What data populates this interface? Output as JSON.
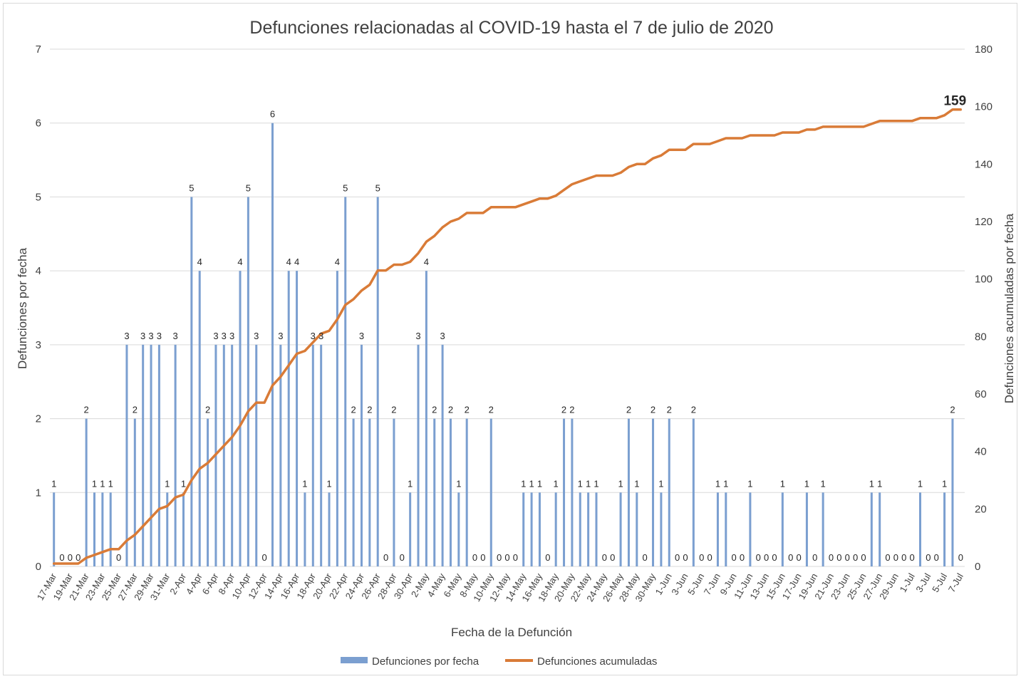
{
  "chart_data": {
    "type": "bar+line",
    "title": "Defunciones relacionadas al COVID-19 hasta el 7 de julio de 2020",
    "xlabel": "Fecha de la Defunción",
    "ylabel": "Defunciones por fecha",
    "y2label": "Defunciones acumuladas por fecha",
    "ylim": [
      0,
      7
    ],
    "y2lim": [
      0,
      180
    ],
    "yticks": [
      "0",
      "1",
      "2",
      "3",
      "4",
      "5",
      "6",
      "7"
    ],
    "y2ticks": [
      "0",
      "20",
      "40",
      "60",
      "80",
      "100",
      "120",
      "140",
      "160",
      "180"
    ],
    "categories": [
      "17-Mar",
      "18-Mar",
      "19-Mar",
      "20-Mar",
      "21-Mar",
      "22-Mar",
      "23-Mar",
      "24-Mar",
      "25-Mar",
      "26-Mar",
      "27-Mar",
      "28-Mar",
      "29-Mar",
      "30-Mar",
      "31-Mar",
      "1-Apr",
      "2-Apr",
      "3-Apr",
      "4-Apr",
      "5-Apr",
      "6-Apr",
      "7-Apr",
      "8-Apr",
      "9-Apr",
      "10-Apr",
      "11-Apr",
      "12-Apr",
      "13-Apr",
      "14-Apr",
      "15-Apr",
      "16-Apr",
      "17-Apr",
      "18-Apr",
      "19-Apr",
      "20-Apr",
      "21-Apr",
      "22-Apr",
      "23-Apr",
      "24-Apr",
      "25-Apr",
      "26-Apr",
      "27-Apr",
      "28-Apr",
      "29-Apr",
      "30-Apr",
      "1-May",
      "2-May",
      "3-May",
      "4-May",
      "5-May",
      "6-May",
      "7-May",
      "8-May",
      "9-May",
      "10-May",
      "11-May",
      "12-May",
      "13-May",
      "14-May",
      "15-May",
      "16-May",
      "17-May",
      "18-May",
      "19-May",
      "20-May",
      "21-May",
      "22-May",
      "23-May",
      "24-May",
      "25-May",
      "26-May",
      "27-May",
      "28-May",
      "29-May",
      "30-May",
      "31-May",
      "1-Jun",
      "2-Jun",
      "3-Jun",
      "4-Jun",
      "5-Jun",
      "6-Jun",
      "7-Jun",
      "8-Jun",
      "9-Jun",
      "10-Jun",
      "11-Jun",
      "12-Jun",
      "13-Jun",
      "14-Jun",
      "15-Jun",
      "16-Jun",
      "17-Jun",
      "18-Jun",
      "19-Jun",
      "20-Jun",
      "21-Jun",
      "22-Jun",
      "23-Jun",
      "24-Jun",
      "25-Jun",
      "26-Jun",
      "27-Jun",
      "28-Jun",
      "29-Jun",
      "30-Jun",
      "1-Jul",
      "2-Jul",
      "3-Jul",
      "4-Jul",
      "5-Jul",
      "6-Jul",
      "7-Jul"
    ],
    "xtick_labels": [
      "17-Mar",
      "19-Mar",
      "21-Mar",
      "23-Mar",
      "25-Mar",
      "27-Mar",
      "29-Mar",
      "31-Mar",
      "2-Apr",
      "4-Apr",
      "6-Apr",
      "8-Apr",
      "10-Apr",
      "12-Apr",
      "14-Apr",
      "16-Apr",
      "18-Apr",
      "20-Apr",
      "22-Apr",
      "24-Apr",
      "26-Apr",
      "28-Apr",
      "30-Apr",
      "2-May",
      "4-May",
      "6-May",
      "8-May",
      "10-May",
      "12-May",
      "14-May",
      "16-May",
      "18-May",
      "20-May",
      "22-May",
      "24-May",
      "26-May",
      "28-May",
      "30-May",
      "1-Jun",
      "3-Jun",
      "5-Jun",
      "7-Jun",
      "9-Jun",
      "11-Jun",
      "13-Jun",
      "15-Jun",
      "17-Jun",
      "19-Jun",
      "21-Jun",
      "23-Jun",
      "25-Jun",
      "27-Jun",
      "29-Jun",
      "1-Jul",
      "3-Jul",
      "5-Jul",
      "7-Jul"
    ],
    "series": [
      {
        "name": "Defunciones por fecha",
        "type": "bar",
        "axis": "left",
        "color": "#7b9fd0",
        "values": [
          1,
          0,
          0,
          0,
          2,
          1,
          1,
          1,
          0,
          3,
          2,
          3,
          3,
          3,
          1,
          3,
          1,
          5,
          4,
          2,
          3,
          3,
          3,
          4,
          5,
          3,
          0,
          6,
          3,
          4,
          4,
          1,
          3,
          3,
          1,
          4,
          5,
          2,
          3,
          2,
          5,
          0,
          2,
          0,
          1,
          3,
          4,
          2,
          3,
          2,
          1,
          2,
          0,
          0,
          2,
          0,
          0,
          0,
          1,
          1,
          1,
          0,
          1,
          2,
          2,
          1,
          1,
          1,
          0,
          0,
          1,
          2,
          1,
          0,
          2,
          1,
          2,
          0,
          0,
          2,
          0,
          0,
          1,
          1,
          0,
          0,
          1,
          0,
          0,
          0,
          1,
          0,
          0,
          1,
          0,
          1,
          0,
          0,
          0,
          0,
          0,
          1,
          1,
          0,
          0,
          0,
          0,
          1,
          0,
          0,
          1,
          2,
          0
        ]
      },
      {
        "name": "Defunciones acumuladas",
        "type": "line",
        "axis": "right",
        "color": "#d97b37",
        "values": [
          1,
          1,
          1,
          1,
          3,
          4,
          5,
          6,
          6,
          9,
          11,
          14,
          17,
          20,
          21,
          24,
          25,
          30,
          34,
          36,
          39,
          42,
          45,
          49,
          54,
          57,
          57,
          63,
          66,
          70,
          74,
          75,
          78,
          81,
          82,
          86,
          91,
          93,
          96,
          98,
          103,
          103,
          105,
          105,
          106,
          109,
          113,
          115,
          118,
          120,
          121,
          123,
          123,
          123,
          125,
          125,
          125,
          125,
          126,
          127,
          128,
          128,
          129,
          131,
          133,
          134,
          135,
          136,
          136,
          136,
          137,
          139,
          140,
          140,
          142,
          143,
          145,
          145,
          145,
          147,
          147,
          147,
          148,
          149,
          149,
          149,
          150,
          150,
          150,
          150,
          151,
          151,
          151,
          152,
          152,
          153,
          153,
          153,
          153,
          153,
          153,
          154,
          155,
          155,
          155,
          155,
          155,
          156,
          156,
          156,
          157,
          159,
          159
        ]
      }
    ],
    "end_label": "159",
    "grid": true,
    "legend": "bottom"
  }
}
